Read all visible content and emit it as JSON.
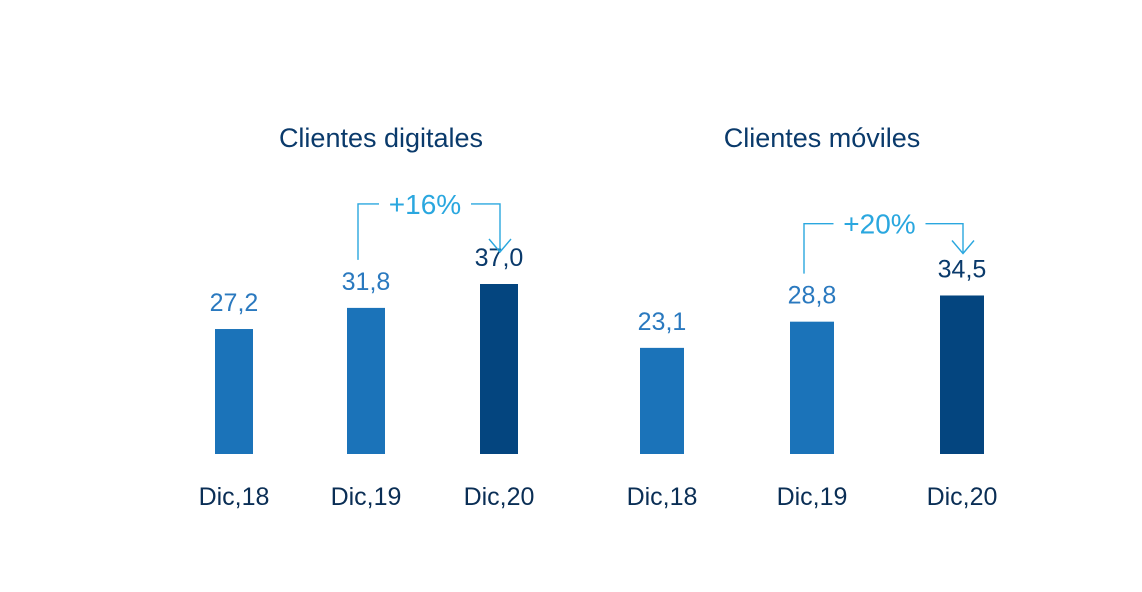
{
  "colors": {
    "bar_light": "#1b73b9",
    "bar_dark": "#04457f",
    "label_light": "#2a79bf",
    "label_dark": "#0a3a6b",
    "title": "#0a3a6b",
    "tick": "#0a2e55",
    "growth": "#2aa7df"
  },
  "chart_data": [
    {
      "type": "bar",
      "title": "Clientes digitales",
      "categories": [
        "Dic,18",
        "Dic,19",
        "Dic,20"
      ],
      "values": [
        27.2,
        31.8,
        37.0
      ],
      "value_labels": [
        "27,2",
        "31,8",
        "37,0"
      ],
      "highlight_index": 2,
      "growth_annotation": {
        "label": "+16%",
        "from_index": 1,
        "to_index": 2
      },
      "xlabel": "",
      "ylabel": "",
      "ylim": [
        0,
        40
      ],
      "grid": false,
      "legend": "none"
    },
    {
      "type": "bar",
      "title": "Clientes móviles",
      "categories": [
        "Dic,18",
        "Dic,19",
        "Dic,20"
      ],
      "values": [
        23.1,
        28.8,
        34.5
      ],
      "value_labels": [
        "23,1",
        "28,8",
        "34,5"
      ],
      "highlight_index": 2,
      "growth_annotation": {
        "label": "+20%",
        "from_index": 1,
        "to_index": 2
      },
      "xlabel": "",
      "ylabel": "",
      "ylim": [
        0,
        40
      ],
      "grid": false,
      "legend": "none"
    }
  ]
}
